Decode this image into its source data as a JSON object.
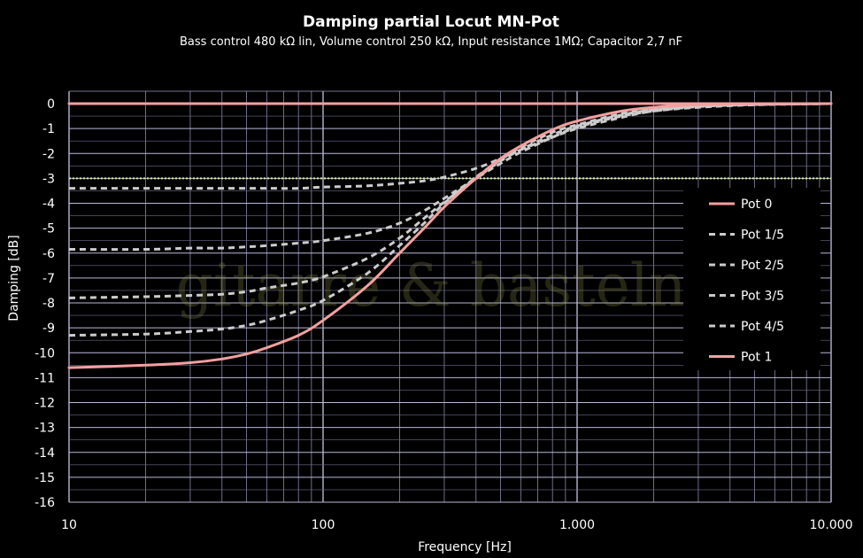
{
  "chart_data": {
    "type": "line",
    "title": "Damping partial Locut MN-Pot",
    "subtitle": "Bass control 480 kΩ lin, Volume control 250 kΩ, Input resistance 1MΩ; Capacitor 2,7 nF",
    "xlabel": "Frequency [Hz]",
    "ylabel": "Damping [dB]",
    "xscale": "log",
    "xlim": [
      10,
      10000
    ],
    "ylim": [
      -16,
      0
    ],
    "xticks": [
      10,
      100,
      1000,
      10000
    ],
    "xtick_labels": [
      "10",
      "100",
      "1.000",
      "10.000"
    ],
    "yticks": [
      0,
      -1,
      -2,
      -3,
      -4,
      -5,
      -6,
      -7,
      -8,
      -9,
      -10,
      -11,
      -12,
      -13,
      -14,
      -15,
      -16
    ],
    "grid": true,
    "legend_position": "right",
    "watermark": "gitarre & basteln",
    "reference_line": {
      "y": -3,
      "color": "#d8f0a0"
    },
    "x": [
      10,
      20,
      30,
      40,
      50,
      60,
      80,
      100,
      150,
      200,
      250,
      300,
      400,
      500,
      600,
      800,
      1000,
      1500,
      2000,
      3000,
      5000,
      10000
    ],
    "series": [
      {
        "name": "Pot 0",
        "style": "solid",
        "color": "#f4a0a0",
        "values": [
          0,
          0,
          0,
          0,
          0,
          0,
          0,
          0,
          0,
          0,
          0,
          0,
          0,
          0,
          0,
          0,
          0,
          0,
          0,
          0,
          0,
          0
        ]
      },
      {
        "name": "Pot 1/5",
        "style": "dashed",
        "color": "#cccccc",
        "values": [
          -3.4,
          -3.4,
          -3.4,
          -3.4,
          -3.4,
          -3.4,
          -3.4,
          -3.35,
          -3.3,
          -3.2,
          -3.1,
          -2.95,
          -2.6,
          -2.2,
          -1.85,
          -1.35,
          -1.0,
          -0.55,
          -0.3,
          -0.15,
          -0.05,
          0
        ]
      },
      {
        "name": "Pot 2/5",
        "style": "dashed",
        "color": "#cccccc",
        "values": [
          -5.85,
          -5.85,
          -5.8,
          -5.8,
          -5.75,
          -5.7,
          -5.6,
          -5.5,
          -5.2,
          -4.8,
          -4.3,
          -3.8,
          -3.0,
          -2.4,
          -1.95,
          -1.35,
          -0.95,
          -0.5,
          -0.3,
          -0.12,
          -0.04,
          0
        ]
      },
      {
        "name": "Pot 3/5",
        "style": "dashed",
        "color": "#cccccc",
        "values": [
          -7.8,
          -7.75,
          -7.7,
          -7.65,
          -7.55,
          -7.4,
          -7.2,
          -6.95,
          -6.2,
          -5.4,
          -4.6,
          -3.95,
          -3.0,
          -2.3,
          -1.85,
          -1.25,
          -0.9,
          -0.45,
          -0.25,
          -0.1,
          -0.03,
          0
        ]
      },
      {
        "name": "Pot 4/5",
        "style": "dashed",
        "color": "#cccccc",
        "values": [
          -9.3,
          -9.25,
          -9.15,
          -9.05,
          -8.9,
          -8.7,
          -8.3,
          -7.9,
          -6.8,
          -5.7,
          -4.8,
          -4.0,
          -2.95,
          -2.25,
          -1.75,
          -1.15,
          -0.85,
          -0.4,
          -0.22,
          -0.08,
          -0.02,
          0
        ]
      },
      {
        "name": "Pot 1",
        "style": "solid",
        "color": "#f4a0a0",
        "values": [
          -10.6,
          -10.5,
          -10.4,
          -10.25,
          -10.05,
          -9.8,
          -9.3,
          -8.7,
          -7.3,
          -6.0,
          -5.0,
          -4.15,
          -3.0,
          -2.2,
          -1.7,
          -1.05,
          -0.7,
          -0.3,
          -0.15,
          -0.05,
          -0.01,
          0
        ]
      }
    ]
  }
}
